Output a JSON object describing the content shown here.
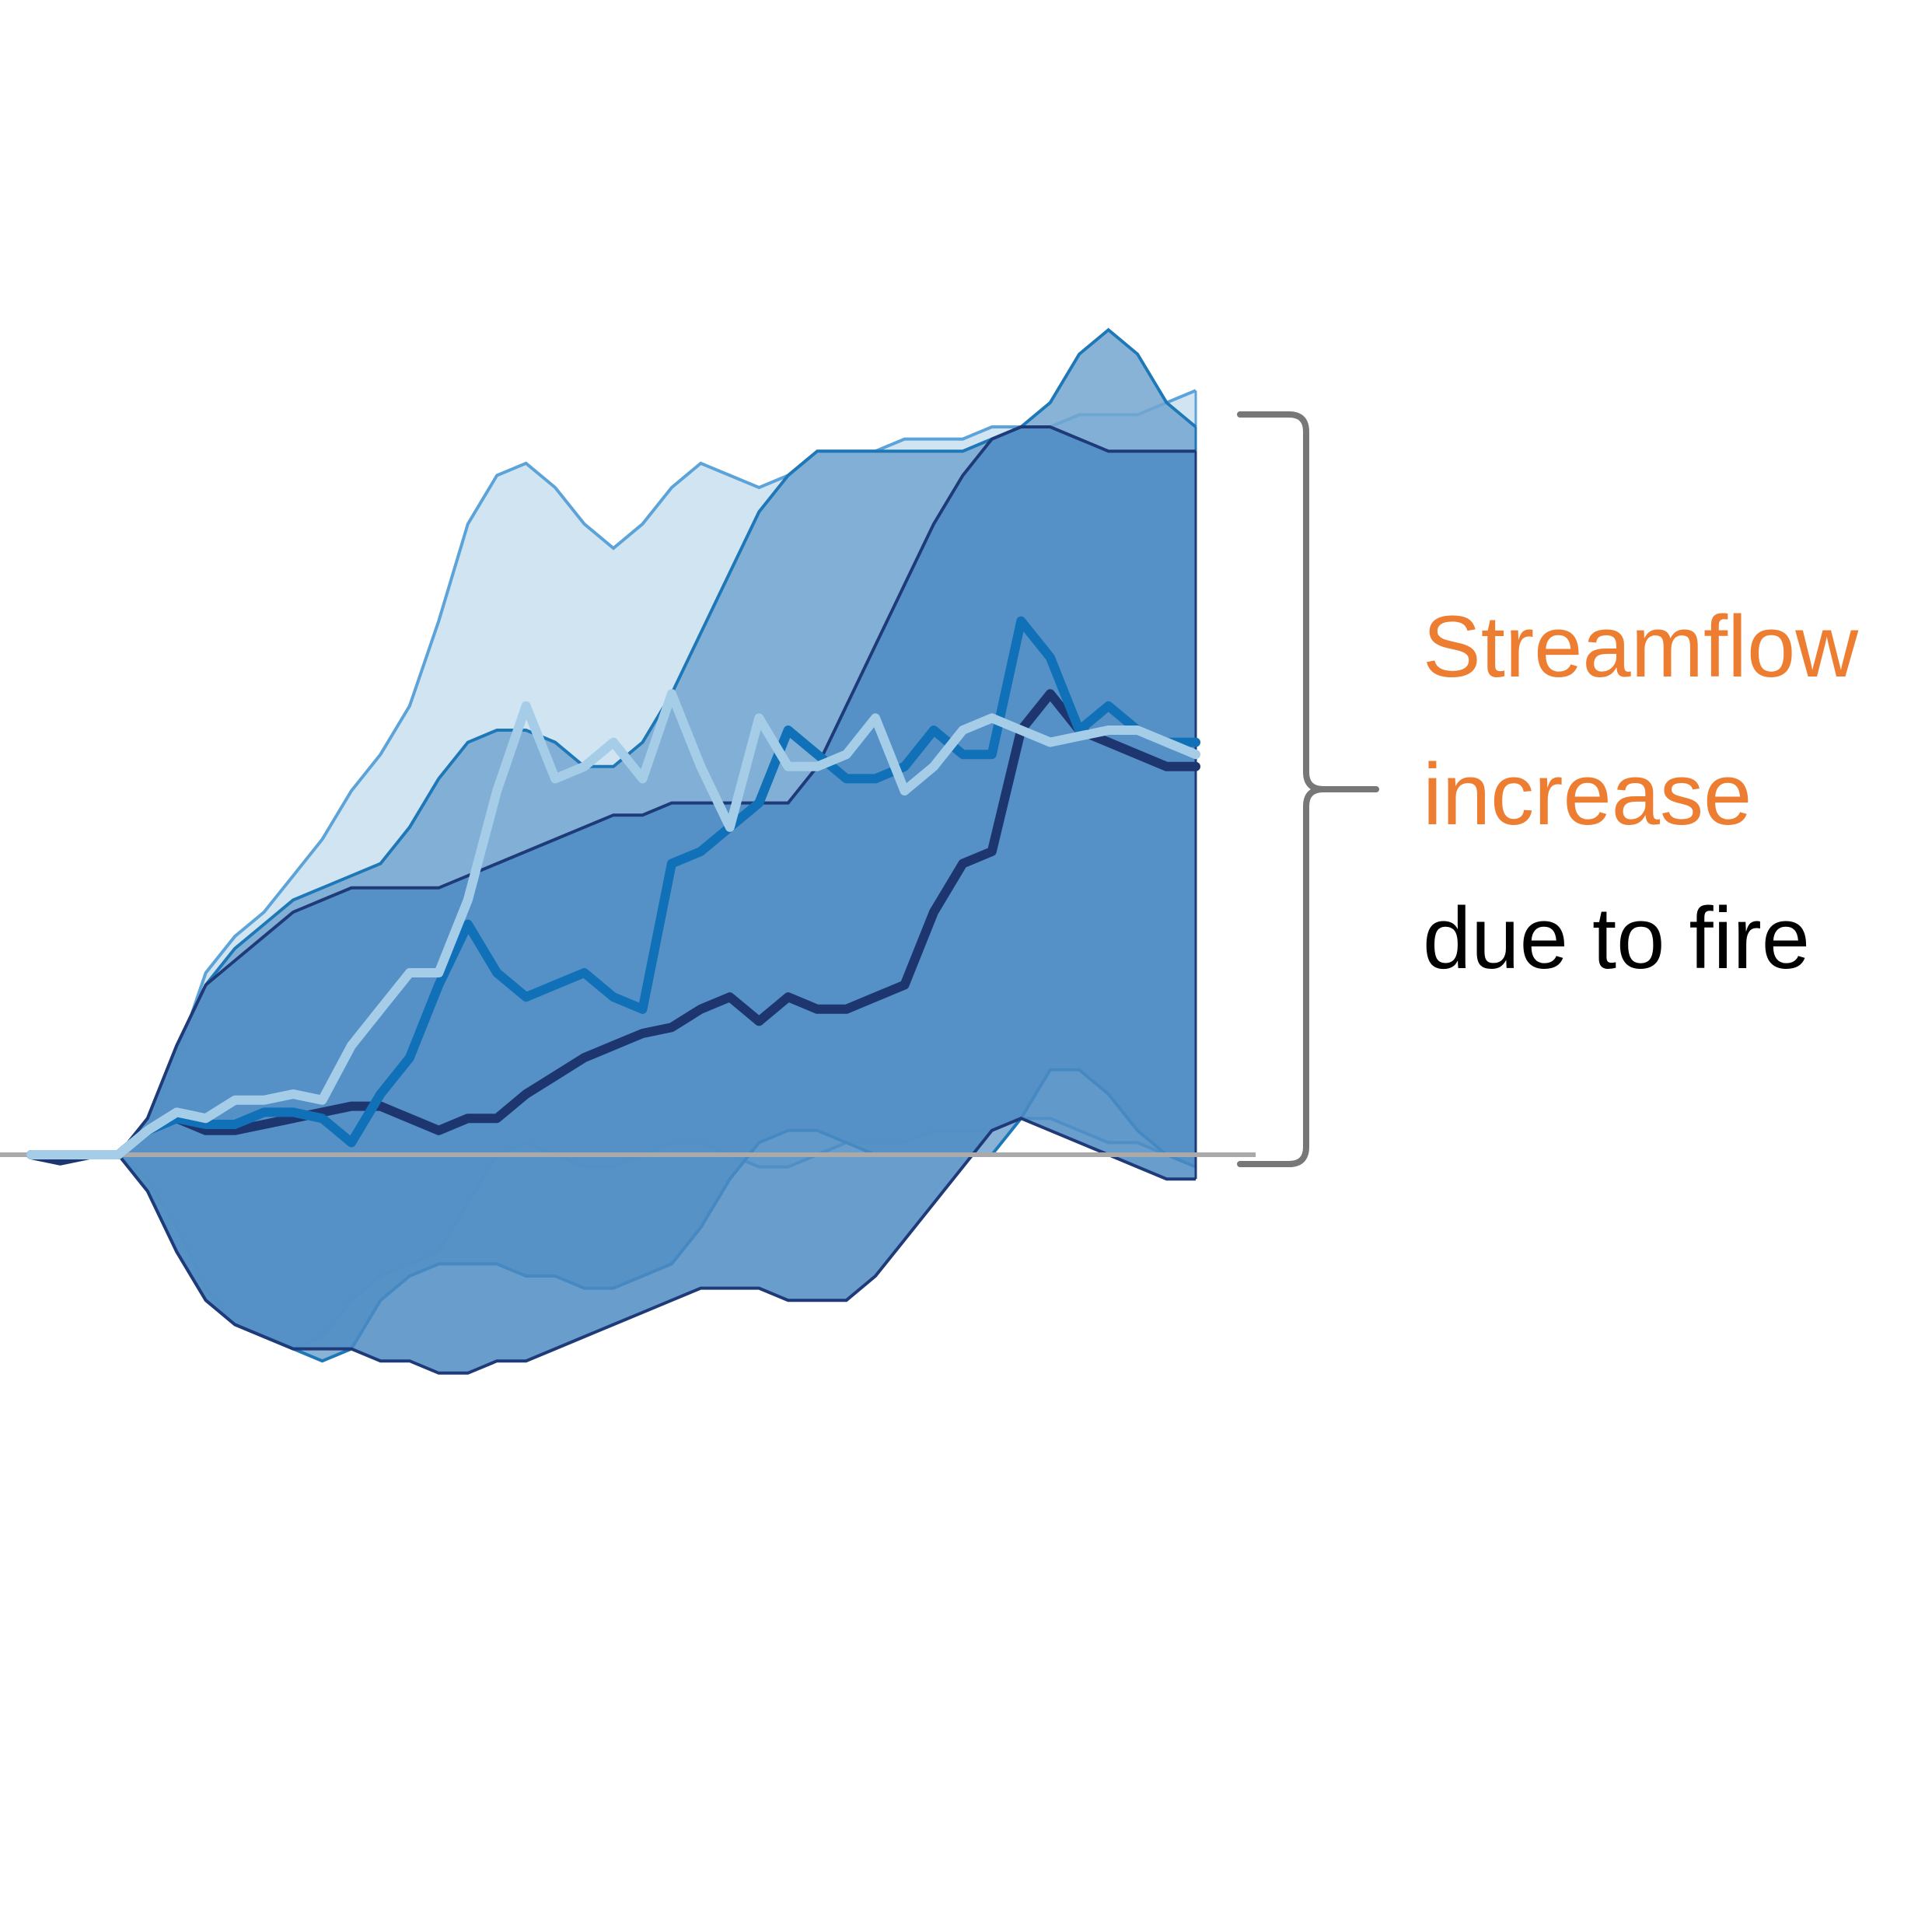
{
  "chart_data": {
    "type": "area",
    "title": "",
    "xlabel": "",
    "ylabel": "",
    "xlim": [
      0,
      40
    ],
    "ylim": [
      -20,
      70
    ],
    "grid": false,
    "baseline": 0,
    "annotation": {
      "line1": "Streamflow",
      "line2": "increase",
      "line3": "due to fire",
      "highlight_color": "#ED7D31",
      "text_color": "#000000"
    },
    "colors": {
      "band_light": "#C9DFF0",
      "band_mid": "#73A6D0",
      "band_dark": "#4D8CC3",
      "edge_light": "#5BA3D8",
      "edge_mid": "#1E78B8",
      "edge_dark": "#1F3A78",
      "line_light": "#A5CDE8",
      "line_mid": "#1071B8",
      "line_dark": "#1E3670",
      "baseline": "#AAAAAA",
      "brace": "#777777"
    },
    "bands": [
      {
        "id": "light",
        "x": [
          0,
          1,
          2,
          3,
          4,
          5,
          6,
          7,
          8,
          9,
          10,
          11,
          12,
          13,
          14,
          15,
          16,
          17,
          18,
          19,
          20,
          21,
          22,
          23,
          24,
          25,
          26,
          27,
          28,
          29,
          30,
          31,
          32,
          33,
          34,
          35,
          36,
          37,
          38,
          39,
          40
        ],
        "upper": [
          0,
          0,
          0,
          0,
          2,
          8,
          15,
          18,
          20,
          23,
          26,
          30,
          33,
          37,
          44,
          52,
          56,
          57,
          55,
          52,
          50,
          52,
          55,
          57,
          56,
          55,
          56,
          58,
          58,
          58,
          59,
          59,
          59,
          60,
          60,
          60,
          61,
          61,
          61,
          62,
          63
        ],
        "lower": [
          0,
          0,
          0,
          0,
          -2,
          -6,
          -11,
          -14,
          -15,
          -16,
          -15,
          -12,
          -10,
          -9,
          -8,
          -4,
          0,
          1,
          0,
          -1,
          -1,
          0,
          1,
          1,
          0,
          -1,
          -1,
          0,
          1,
          1,
          1,
          2,
          2,
          2,
          3,
          3,
          2,
          1,
          1,
          0,
          0
        ]
      },
      {
        "id": "mid",
        "x": [
          0,
          1,
          2,
          3,
          4,
          5,
          6,
          7,
          8,
          9,
          10,
          11,
          12,
          13,
          14,
          15,
          16,
          17,
          18,
          19,
          20,
          21,
          22,
          23,
          24,
          25,
          26,
          27,
          28,
          29,
          30,
          31,
          32,
          33,
          34,
          35,
          36,
          37,
          38,
          39,
          40
        ],
        "upper": [
          0,
          0,
          0,
          0,
          3,
          9,
          14,
          17,
          19,
          21,
          22,
          23,
          24,
          27,
          31,
          34,
          35,
          35,
          34,
          32,
          32,
          34,
          38,
          43,
          48,
          53,
          56,
          58,
          58,
          58,
          58,
          58,
          58,
          59,
          60,
          62,
          66,
          68,
          66,
          62,
          60
        ],
        "lower": [
          0,
          0,
          0,
          0,
          -3,
          -8,
          -12,
          -14,
          -15,
          -16,
          -17,
          -16,
          -12,
          -10,
          -9,
          -9,
          -9,
          -10,
          -10,
          -11,
          -11,
          -10,
          -9,
          -6,
          -2,
          1,
          2,
          2,
          1,
          0,
          0,
          0,
          0,
          0,
          3,
          7,
          7,
          5,
          2,
          0,
          -1
        ]
      },
      {
        "id": "dark",
        "x": [
          0,
          1,
          2,
          3,
          4,
          5,
          6,
          7,
          8,
          9,
          10,
          11,
          12,
          13,
          14,
          15,
          16,
          17,
          18,
          19,
          20,
          21,
          22,
          23,
          24,
          25,
          26,
          27,
          28,
          29,
          30,
          31,
          32,
          33,
          34,
          35,
          36,
          37,
          38,
          39,
          40
        ],
        "upper": [
          0,
          0,
          0,
          0,
          3,
          9,
          14,
          16,
          18,
          20,
          21,
          22,
          22,
          22,
          22,
          23,
          24,
          25,
          26,
          27,
          28,
          28,
          29,
          29,
          29,
          29,
          29,
          32,
          37,
          42,
          47,
          52,
          56,
          59,
          60,
          60,
          59,
          58,
          58,
          58,
          58
        ],
        "lower": [
          0,
          0,
          0,
          0,
          -3,
          -8,
          -12,
          -14,
          -15,
          -16,
          -16,
          -16,
          -17,
          -17,
          -18,
          -18,
          -17,
          -17,
          -16,
          -15,
          -14,
          -13,
          -12,
          -11,
          -11,
          -11,
          -12,
          -12,
          -12,
          -10,
          -7,
          -4,
          -1,
          2,
          3,
          2,
          1,
          0,
          -1,
          -2,
          -2
        ]
      }
    ],
    "series": [
      {
        "id": "dark",
        "x": [
          0,
          1,
          2,
          3,
          4,
          5,
          6,
          7,
          8,
          9,
          10,
          11,
          12,
          13,
          14,
          15,
          16,
          17,
          18,
          19,
          20,
          21,
          22,
          23,
          24,
          25,
          26,
          27,
          28,
          29,
          30,
          31,
          32,
          33,
          34,
          35,
          36,
          37,
          38,
          39,
          40
        ],
        "values": [
          0,
          -0.5,
          0,
          0,
          2,
          3,
          2,
          2,
          2.5,
          3,
          3.5,
          4,
          4,
          3,
          2,
          3,
          3,
          5,
          6.5,
          8,
          9,
          10,
          10.5,
          12,
          13,
          11,
          13,
          12,
          12,
          13,
          14,
          20,
          24,
          25,
          35,
          38,
          35,
          34,
          33,
          32,
          32
        ]
      },
      {
        "id": "mid",
        "x": [
          0,
          1,
          2,
          3,
          4,
          5,
          6,
          7,
          8,
          9,
          10,
          11,
          12,
          13,
          14,
          15,
          16,
          17,
          18,
          19,
          20,
          21,
          22,
          23,
          24,
          25,
          26,
          27,
          28,
          29,
          30,
          31,
          32,
          33,
          34,
          35,
          36,
          37,
          38,
          39,
          40
        ],
        "values": [
          0,
          0,
          0,
          0,
          2,
          3,
          2.5,
          2.5,
          3.5,
          3.5,
          3,
          1,
          5,
          8,
          14,
          19,
          15,
          13,
          14,
          15,
          13,
          12,
          24,
          25,
          27,
          29,
          35,
          33,
          31,
          31,
          32,
          35,
          33,
          33,
          44,
          41,
          35,
          37,
          35,
          34,
          34
        ]
      },
      {
        "id": "light",
        "x": [
          0,
          1,
          2,
          3,
          4,
          5,
          6,
          7,
          8,
          9,
          10,
          11,
          12,
          13,
          14,
          15,
          16,
          17,
          18,
          19,
          20,
          21,
          22,
          23,
          24,
          25,
          26,
          27,
          28,
          29,
          30,
          31,
          32,
          33,
          34,
          35,
          36,
          37,
          38,
          39,
          40
        ],
        "values": [
          0,
          0,
          0,
          0,
          2,
          3.5,
          3,
          4.5,
          4.5,
          5,
          4.5,
          9,
          12,
          15,
          15,
          21,
          30,
          37,
          31,
          32,
          34,
          31,
          38,
          32,
          27,
          36,
          32,
          32,
          33,
          36,
          30,
          32,
          35,
          36,
          35,
          34,
          34.5,
          35,
          35,
          34,
          33
        ]
      }
    ]
  }
}
